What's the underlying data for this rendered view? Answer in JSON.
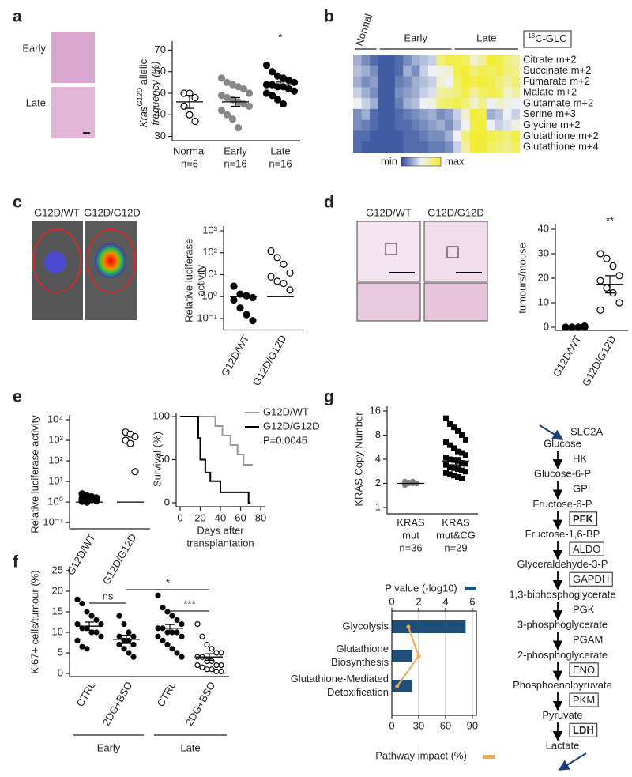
{
  "figure": {
    "panels": [
      "a",
      "b",
      "c",
      "d",
      "e",
      "g",
      "f"
    ],
    "images": {
      "a": [
        "Early",
        "Late"
      ],
      "c": [
        "G12D/WT",
        "G12D/G12D"
      ],
      "d": [
        "G12D/WT",
        "G12D/G12D"
      ]
    }
  },
  "chart_data": [
    {
      "type": "strip",
      "ylabel": [
        [
          "Kras",
          "G12D",
          " allelic"
        ],
        [
          "frequency (%)"
        ]
      ],
      "categories": [
        [
          "Normal",
          "n=6"
        ],
        [
          "Early",
          "n=16"
        ],
        [
          "Late",
          "n=16"
        ]
      ],
      "ylim": [
        28,
        72
      ],
      "yticks": [
        30,
        40,
        50,
        60,
        70
      ],
      "series": [
        {
          "marker": "open",
          "color": "#000000",
          "values": [
            50,
            50,
            48,
            44,
            40,
            37
          ],
          "center": 46,
          "sem": 3
        },
        {
          "marker": "filled",
          "color": "#888888",
          "values": [
            57,
            55,
            54,
            53,
            52,
            50,
            49,
            48,
            47,
            46,
            45,
            44,
            42,
            40,
            38,
            34
          ],
          "center": 46,
          "sem": 2
        },
        {
          "marker": "filled",
          "color": "#000000",
          "values": [
            63,
            60,
            58,
            57,
            56,
            55,
            54,
            54,
            53,
            53,
            52,
            51,
            50,
            49,
            47,
            45
          ],
          "center": 54,
          "sem": 1.2
        }
      ],
      "annotations": [
        {
          "text": "*",
          "category": 2
        }
      ]
    },
    {
      "type": "heatmap",
      "title": [
        "13",
        "C-GLC"
      ],
      "groups": [
        {
          "name": "Normal",
          "columns": 3
        },
        {
          "name": "Early",
          "columns": 9
        },
        {
          "name": "Late",
          "columns": 8
        }
      ],
      "rows": [
        "Citrate m+2",
        "Succinate m+2",
        "Fumarate m+2",
        "Malate m+2",
        "Glutamate m+2",
        "Serine m+3",
        "Glycine m+2",
        "Glutathione m+2",
        "Glutathione m+4"
      ],
      "colors": [
        "#2b4b9b",
        "#eef0f6",
        "#f2ee22"
      ],
      "legend": [
        "min",
        "max"
      ],
      "values": [
        [
          0.3,
          0.2,
          0.1,
          0.05,
          0.05,
          0.1,
          0.2,
          0.3,
          0.35,
          0.4,
          0.8,
          0.9,
          0.9,
          0.85,
          0.6,
          0.7,
          0.95,
          0.9,
          0.8,
          0.7
        ],
        [
          0.35,
          0.3,
          0.2,
          0.05,
          0.05,
          0.1,
          0.3,
          0.2,
          0.4,
          0.5,
          0.55,
          0.6,
          0.9,
          0.95,
          0.8,
          0.9,
          0.85,
          0.9,
          0.8,
          0.75
        ],
        [
          0.3,
          0.2,
          0.25,
          0.05,
          0.05,
          0.15,
          0.2,
          0.3,
          0.35,
          0.4,
          0.6,
          0.5,
          0.85,
          0.95,
          0.9,
          0.95,
          0.9,
          0.8,
          0.7,
          0.8
        ],
        [
          0.4,
          0.3,
          0.2,
          0.05,
          0.05,
          0.2,
          0.25,
          0.3,
          0.4,
          0.45,
          0.7,
          0.75,
          0.8,
          0.9,
          0.7,
          0.85,
          0.9,
          0.85,
          0.6,
          0.7
        ],
        [
          0.5,
          0.4,
          0.3,
          0.05,
          0.05,
          0.15,
          0.3,
          0.35,
          0.5,
          0.55,
          0.8,
          0.85,
          0.9,
          0.8,
          0.6,
          0.75,
          0.5,
          0.6,
          0.55,
          0.5
        ],
        [
          0.2,
          0.3,
          0.1,
          0.05,
          0.05,
          0.1,
          0.15,
          0.2,
          0.25,
          0.3,
          0.2,
          0.25,
          0.4,
          0.6,
          0.95,
          0.9,
          0.3,
          0.35,
          0.5,
          0.4
        ],
        [
          0.2,
          0.15,
          0.1,
          0.05,
          0.05,
          0.1,
          0.1,
          0.15,
          0.2,
          0.25,
          0.3,
          0.2,
          0.35,
          0.5,
          0.9,
          0.95,
          0.5,
          0.4,
          0.45,
          0.55
        ],
        [
          0.1,
          0.1,
          0.05,
          0.05,
          0.05,
          0.05,
          0.1,
          0.1,
          0.15,
          0.2,
          0.2,
          0.3,
          0.5,
          0.8,
          0.95,
          0.95,
          0.9,
          0.85,
          0.8,
          0.9
        ],
        [
          0.1,
          0.05,
          0.05,
          0.05,
          0.05,
          0.05,
          0.1,
          0.1,
          0.1,
          0.15,
          0.15,
          0.2,
          0.4,
          0.7,
          0.95,
          0.95,
          0.85,
          0.8,
          0.75,
          0.85
        ]
      ]
    },
    {
      "type": "strip",
      "log": true,
      "rotate_labels": true,
      "ylabel": [
        "Relative luciferase",
        "activity"
      ],
      "categories": [
        [
          "G12D/WT"
        ],
        [
          "G12D/G12D"
        ]
      ],
      "ylim": [
        0.03,
        1000
      ],
      "yticks": [
        {
          "value": 1000,
          "label": "10³"
        },
        {
          "value": 100,
          "label": "10²"
        },
        {
          "value": 10,
          "label": "10¹"
        },
        {
          "value": 1,
          "label": "10⁰"
        },
        {
          "value": 0.1,
          "label": "10⁻¹"
        }
      ],
      "series": [
        {
          "marker": "filled",
          "color": "#000000",
          "values": [
            3,
            1.3,
            1.1,
            0.9,
            0.7,
            0.3,
            0.15,
            0.08
          ],
          "center": 1
        },
        {
          "marker": "open",
          "color": "#000000",
          "values": [
            120,
            60,
            30,
            12,
            8,
            5,
            4,
            2
          ],
          "center": 1
        }
      ]
    },
    {
      "type": "strip",
      "rotate_labels": true,
      "ylabel": "tumours/mouse",
      "categories": [
        [
          "G12D/WT"
        ],
        [
          "G12D/G12D"
        ]
      ],
      "ylim": [
        0,
        40
      ],
      "yticks": [
        0,
        10,
        20,
        30,
        40
      ],
      "series": [
        {
          "marker": "filled",
          "color": "#000000",
          "values": [
            0,
            0,
            0,
            0,
            0,
            0,
            0,
            0.5
          ],
          "center": 0.2,
          "sem": 0.1
        },
        {
          "marker": "open",
          "color": "#000000",
          "values": [
            30,
            28,
            25,
            21,
            19,
            16,
            14,
            10,
            7
          ],
          "center": 17.5,
          "sem": 3.5
        }
      ],
      "annotations": [
        {
          "text": "**",
          "category": 1
        }
      ]
    },
    {
      "type": "strip",
      "log": true,
      "rotate_labels": true,
      "ylabel": "Relative luciferase activity",
      "categories": [
        [
          "G12D/WT"
        ],
        [
          "G12D/G12D"
        ]
      ],
      "ylim": [
        0.05,
        10000
      ],
      "yticks": [
        {
          "value": 10000,
          "label": "10⁴"
        },
        {
          "value": 1000,
          "label": "10³"
        },
        {
          "value": 100,
          "label": "10²"
        },
        {
          "value": 10,
          "label": "10¹"
        },
        {
          "value": 1,
          "label": "10⁰"
        },
        {
          "value": 0.1,
          "label": "10⁻¹"
        }
      ],
      "series": [
        {
          "marker": "filled",
          "color": "#000000",
          "values": [
            2.5,
            2,
            1.8,
            1.6,
            1.5,
            1.4,
            1.3,
            1.2,
            1.1,
            1.0
          ],
          "center": 1
        },
        {
          "marker": "open",
          "color": "#000000",
          "values": [
            2500,
            2000,
            1500,
            1000,
            700,
            30
          ],
          "center": 1
        }
      ]
    },
    {
      "type": "step",
      "ylabel": "Survival (%)",
      "xlabel": [
        "Days after",
        "transplantation"
      ],
      "xlim": [
        0,
        80
      ],
      "xticks": [
        0,
        20,
        40,
        60,
        80
      ],
      "ylim": [
        0,
        100
      ],
      "yticks": [
        0,
        50,
        100
      ],
      "series": [
        {
          "name": "G12D/WT",
          "color": "#999999",
          "x": [
            0,
            35,
            42,
            50,
            57,
            63,
            72
          ],
          "values": [
            100,
            89,
            78,
            67,
            56,
            44,
            44
          ]
        },
        {
          "name": "G12D/G12D",
          "color": "#000000",
          "x": [
            0,
            18,
            20,
            25,
            30,
            40,
            68,
            70
          ],
          "values": [
            100,
            75,
            50,
            35,
            25,
            12,
            0,
            0
          ]
        }
      ],
      "annotation": "P=0.0045"
    },
    {
      "type": "strip",
      "ylabel": "Ki67+ cells/tumour (%)",
      "rotate_labels": true,
      "categories": [
        [
          "CTRL"
        ],
        [
          "2DG+BSO"
        ],
        [
          "CTRL"
        ],
        [
          "2DG+BSO"
        ]
      ],
      "groups": [
        "Early",
        "Late"
      ],
      "ylim": [
        0,
        25
      ],
      "yticks": [
        0,
        5,
        10,
        15,
        20,
        25
      ],
      "series": [
        {
          "marker": "filled",
          "color": "#000000",
          "values": [
            18,
            17,
            15,
            14,
            13,
            12,
            12,
            11,
            11,
            10,
            10,
            9,
            8,
            6.5,
            6
          ],
          "center": 11.5,
          "sem": 1
        },
        {
          "marker": "filled",
          "color": "#000000",
          "values": [
            14,
            12,
            10,
            9,
            9,
            8,
            8,
            7,
            7,
            6,
            5,
            4
          ],
          "center": 8.3,
          "sem": 1
        },
        {
          "marker": "filled",
          "color": "#000000",
          "values": [
            19,
            16,
            15,
            14,
            13,
            12,
            11,
            11,
            10,
            10,
            10,
            9,
            9,
            8,
            7,
            6,
            5,
            4
          ],
          "center": 11,
          "sem": 0.9
        },
        {
          "marker": "open",
          "color": "#000000",
          "values": [
            12,
            9,
            7,
            6,
            5,
            5,
            4,
            4,
            3,
            3,
            2,
            2,
            2,
            1.5,
            1,
            1,
            0.5,
            0.5
          ],
          "center": 4,
          "sem": 0.8
        }
      ],
      "comparisons": [
        {
          "text": "ns",
          "between": [
            0,
            1
          ]
        },
        {
          "text": "*",
          "between": [
            1,
            3
          ]
        },
        {
          "text": "***",
          "between": [
            2,
            3
          ]
        }
      ]
    },
    {
      "type": "strip",
      "log": true,
      "ylabel": "KRAS Copy Number",
      "categories": [
        [
          "KRAS",
          "mut",
          "n=36"
        ],
        [
          "KRAS",
          "mut&CG",
          "n=29"
        ]
      ],
      "ylim": [
        1,
        16
      ],
      "yticks": [
        1,
        2,
        4,
        8,
        16
      ],
      "series": [
        {
          "marker": "filled",
          "color": "#7f7f7f",
          "values": [
            2.1,
            2.05,
            2,
            2,
            1.95,
            2,
            2.1,
            2,
            1.9,
            2,
            2.05,
            2
          ],
          "center": 2
        },
        {
          "marker": "square",
          "color": "#000000",
          "values": [
            13,
            11,
            10,
            9,
            8,
            7,
            6.5,
            6,
            5.5,
            5,
            4.8,
            4.5,
            4.2,
            4,
            3.9,
            3.8,
            3.6,
            3.5,
            3.4,
            3.2,
            3.1,
            3,
            2.9,
            2.8,
            2.7,
            2.6,
            2.5,
            2.4,
            2.3
          ],
          "center": 3.8,
          "sem": 0.4
        }
      ]
    },
    {
      "type": "hbar",
      "categories": [
        [
          "Glycolysis"
        ],
        [
          "Glutathione",
          "Biosynthesis"
        ],
        [
          "Glutathione-Mediated",
          "Detoxification"
        ]
      ],
      "xlim": [
        0,
        6.3
      ],
      "xticks": [
        0,
        2,
        4,
        6
      ],
      "x2lim": [
        0,
        94.5
      ],
      "x2ticks": [
        0,
        30,
        60,
        90
      ],
      "grid": true,
      "series": [
        {
          "name": "P value (-log10)",
          "color": "#1f4e79",
          "values": [
            5.5,
            1.5,
            1.5
          ]
        },
        {
          "name": "Pathway impact (%)",
          "color": "#f4a950",
          "values": [
            18.5,
            30,
            6
          ],
          "axis": "x2"
        }
      ]
    }
  ],
  "pathway": {
    "transporter": "SLC2A",
    "metabolites": [
      "Glucose",
      "Glucose-6-P",
      "Fructose-6-P",
      "Fructose-1,6-BP",
      "Glyceraldehyde-3-P",
      "1,3-biphosphoglycerate",
      "3-phosphoglycerate",
      "2-phosphoglycerate",
      "Phosphoenolpyruvate",
      "Pyruvate",
      "Lactate"
    ],
    "enzymes": [
      {
        "label": "HK",
        "boxed": false,
        "highlight": false
      },
      {
        "label": "GPI",
        "boxed": false,
        "highlight": false
      },
      {
        "label": "PFK",
        "boxed": true,
        "highlight": true
      },
      {
        "label": "ALDO",
        "boxed": true,
        "highlight": false
      },
      {
        "label": "GAPDH",
        "boxed": true,
        "highlight": false
      },
      {
        "label": "PGK",
        "boxed": false,
        "highlight": false
      },
      {
        "label": "PGAM",
        "boxed": false,
        "highlight": false
      },
      {
        "label": "ENO",
        "boxed": true,
        "highlight": false
      },
      {
        "label": "PKM",
        "boxed": true,
        "highlight": false
      },
      {
        "label": "LDH",
        "boxed": true,
        "highlight": true
      }
    ]
  }
}
